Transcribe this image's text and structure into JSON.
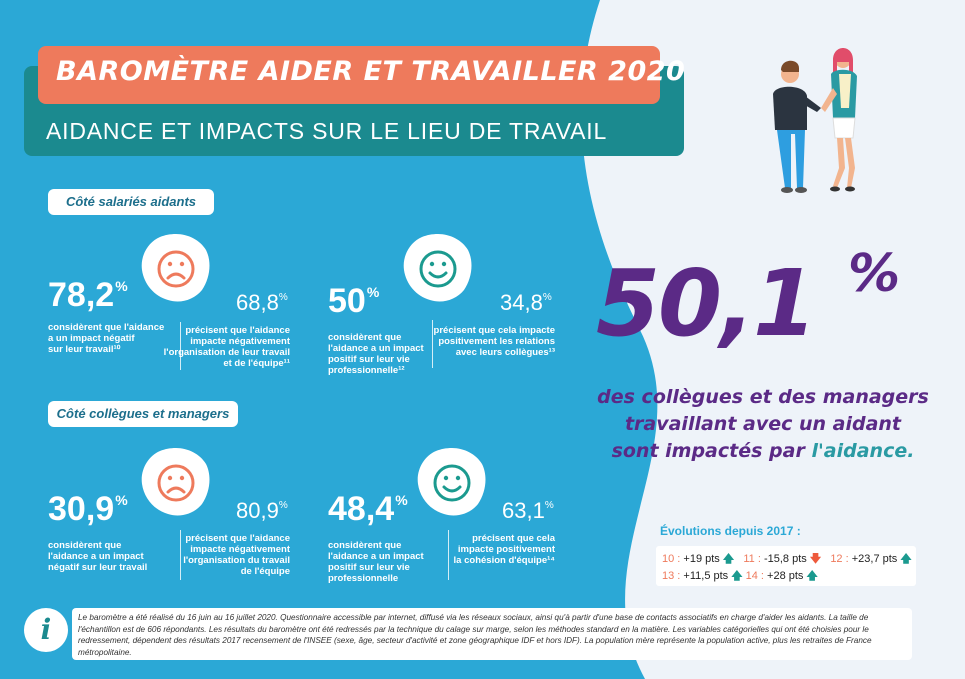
{
  "header": {
    "title": "BAROMÈTRE AIDER ET TRAVAILLER 2020",
    "subtitle": "AIDANCE ET IMPACTS SUR LE LIEU DE TRAVAIL"
  },
  "colors": {
    "background": "#2ba8d6",
    "accent_orange": "#ee7a5c",
    "teal": "#1b8a8f",
    "purple": "#5b2a86"
  },
  "section_employees": {
    "label": "Côté salariés aidants",
    "stat1": {
      "value": "78,2",
      "unit": "%",
      "desc_lines": [
        "considèrent que l'aidance",
        "a un impact négatif",
        "sur leur travail¹⁰"
      ],
      "icon": "sad-face-icon",
      "sub_value": "68,8",
      "sub_unit": "%",
      "sub_desc_lines": [
        "précisent que l'aidance",
        "impacte négativement",
        "l'organisation de leur travail",
        "et de l'équipe¹¹"
      ]
    },
    "stat2": {
      "value": "50",
      "unit": "%",
      "desc_lines": [
        "considèrent que",
        "l'aidance a un impact",
        "positif sur leur vie",
        "professionnelle¹²"
      ],
      "icon": "smile-face-icon",
      "sub_value": "34,8",
      "sub_unit": "%",
      "sub_desc_lines": [
        "précisent que cela impacte",
        "positivement les relations",
        "avec leurs collègues¹³"
      ]
    }
  },
  "section_colleagues": {
    "label": "Côté collègues et managers",
    "stat1": {
      "value": "30,9",
      "unit": "%",
      "desc_lines": [
        "considèrent que",
        "l'aidance a un impact",
        "négatif sur leur travail"
      ],
      "icon": "sad-face-icon",
      "sub_value": "80,9",
      "sub_unit": "%",
      "sub_desc_lines": [
        "précisent que l'aidance",
        "impacte négativement",
        "l'organisation du travail",
        "de l'équipe"
      ]
    },
    "stat2": {
      "value": "48,4",
      "unit": "%",
      "desc_lines": [
        "considèrent que",
        "l'aidance a un impact",
        "positif sur leur vie",
        "professionnelle"
      ],
      "icon": "smile-face-icon",
      "sub_value": "63,1",
      "sub_unit": "%",
      "sub_desc_lines": [
        "précisent que cela",
        "impacte positivement",
        "la cohésion d'équipe¹⁴"
      ]
    }
  },
  "highlight": {
    "value": "50,1",
    "unit": "%",
    "line1": "des collègues et des managers",
    "line2": "travaillant avec un aidant",
    "line3_prefix": "sont impactés par ",
    "line3_accent": "l'aidance."
  },
  "evolutions": {
    "title": "Évolutions depuis 2017 :",
    "items": [
      {
        "ref": "10 :",
        "value": "+19 pts",
        "direction": "up"
      },
      {
        "ref": "11 :",
        "value": "-15,8 pts",
        "direction": "down"
      },
      {
        "ref": "12 :",
        "value": "+23,7 pts",
        "direction": "up"
      },
      {
        "ref": "13 :",
        "value": "+11,5 pts",
        "direction": "up"
      },
      {
        "ref": "14 :",
        "value": "+28 pts",
        "direction": "up"
      }
    ],
    "arrow_up": "🡅",
    "arrow_down": "🡇"
  },
  "info": {
    "icon": "info-icon",
    "icon_glyph": "i",
    "text": "Le baromètre a été réalisé du 16 juin au 16 juillet 2020. Questionnaire accessible par internet, diffusé via les réseaux sociaux, ainsi qu'à partir d'une base de contacts associatifs en charge d'aider les aidants. La taille de l'échantillon est de 606 répondants. Les résultats du baromètre ont été redressés par la technique du calage sur marge, selon les méthodes standard en la matière. Les variables catégorielles qui ont été choisies pour le redressement, dépendent des résultats 2017 recensement de l'INSEE (sexe, âge, secteur d'activité et zone géographique IDF et hors IDF). La population mère représente la population active, plus les retraites de France métropolitaine."
  },
  "illustration": {
    "icon": "two-people-handshake-illustration"
  }
}
